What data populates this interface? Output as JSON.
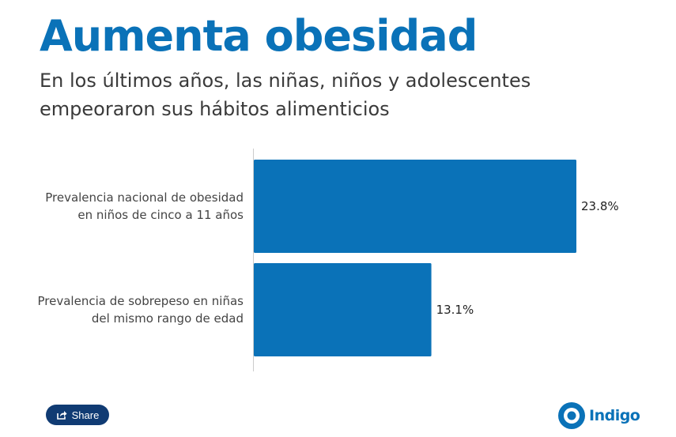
{
  "header": {
    "title": "Aumenta obesidad",
    "subtitle": "En los últimos años, las niñas, niños y adolescentes empeoraron sus hábitos alimenticios"
  },
  "chart_data": {
    "type": "bar",
    "orientation": "horizontal",
    "categories": [
      [
        "Prevalencia nacional de obesidad",
        "en niños de cinco a 11 años"
      ],
      [
        "Prevalencia de sobrepeso en niñas",
        "del mismo rango de edad"
      ]
    ],
    "values": [
      23.8,
      13.1
    ],
    "value_labels": [
      "23.8%",
      "13.1%"
    ],
    "xlim": [
      0,
      23.8
    ],
    "grid": false,
    "bar_color": "#0a72b8"
  },
  "footer": {
    "share_label": "Share",
    "share_icon": "share-icon",
    "logo_text": "Indigo"
  },
  "colors": {
    "accent": "#0a72b8",
    "share_button": "#103b73"
  }
}
